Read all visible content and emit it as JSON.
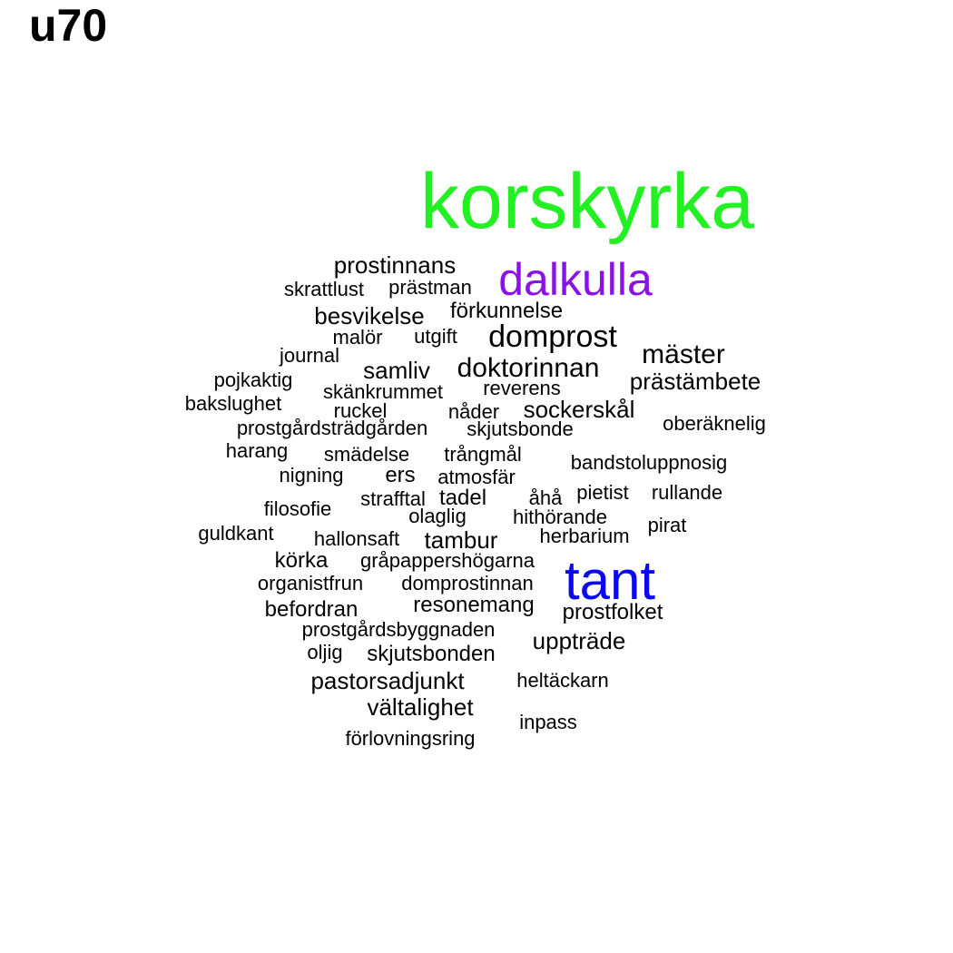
{
  "title": "u70",
  "colors": {
    "highlight_green": "#22f022",
    "highlight_purple": "#8a12e6",
    "highlight_blue": "#0a0af2",
    "default": "#000000"
  },
  "words": [
    {
      "text": "korskyrka",
      "color": "#22f022",
      "weight": 1.0
    },
    {
      "text": "dalkulla",
      "color": "#8a12e6",
      "weight": 0.62
    },
    {
      "text": "tant",
      "color": "#0a0af2",
      "weight": 0.68
    },
    {
      "text": "prostinnans",
      "color": "#000000",
      "weight": 0.32
    },
    {
      "text": "skrattlust",
      "color": "#000000",
      "weight": 0.28
    },
    {
      "text": "prästman",
      "color": "#000000",
      "weight": 0.28
    },
    {
      "text": "besvikelse",
      "color": "#000000",
      "weight": 0.32
    },
    {
      "text": "förkunnelse",
      "color": "#000000",
      "weight": 0.3
    },
    {
      "text": "malör",
      "color": "#000000",
      "weight": 0.28
    },
    {
      "text": "utgift",
      "color": "#000000",
      "weight": 0.28
    },
    {
      "text": "domprost",
      "color": "#000000",
      "weight": 0.42
    },
    {
      "text": "journal",
      "color": "#000000",
      "weight": 0.28
    },
    {
      "text": "mäster",
      "color": "#000000",
      "weight": 0.38
    },
    {
      "text": "samliv",
      "color": "#000000",
      "weight": 0.32
    },
    {
      "text": "doktorinnan",
      "color": "#000000",
      "weight": 0.38
    },
    {
      "text": "pojkaktig",
      "color": "#000000",
      "weight": 0.28
    },
    {
      "text": "prästämbete",
      "color": "#000000",
      "weight": 0.32
    },
    {
      "text": "skänkrummet",
      "color": "#000000",
      "weight": 0.28
    },
    {
      "text": "reverens",
      "color": "#000000",
      "weight": 0.28
    },
    {
      "text": "bakslughet",
      "color": "#000000",
      "weight": 0.28
    },
    {
      "text": "ruckel",
      "color": "#000000",
      "weight": 0.28
    },
    {
      "text": "nåder",
      "color": "#000000",
      "weight": 0.28
    },
    {
      "text": "sockerskål",
      "color": "#000000",
      "weight": 0.32
    },
    {
      "text": "oberäknelig",
      "color": "#000000",
      "weight": 0.28
    },
    {
      "text": "prostgårdsträdgården",
      "color": "#000000",
      "weight": 0.28
    },
    {
      "text": "skjutsbonde",
      "color": "#000000",
      "weight": 0.28
    },
    {
      "text": "harang",
      "color": "#000000",
      "weight": 0.28
    },
    {
      "text": "smädelse",
      "color": "#000000",
      "weight": 0.28
    },
    {
      "text": "trångmål",
      "color": "#000000",
      "weight": 0.28
    },
    {
      "text": "bandstoluppnosig",
      "color": "#000000",
      "weight": 0.28
    },
    {
      "text": "nigning",
      "color": "#000000",
      "weight": 0.28
    },
    {
      "text": "ers",
      "color": "#000000",
      "weight": 0.3
    },
    {
      "text": "atmosfär",
      "color": "#000000",
      "weight": 0.28
    },
    {
      "text": "strafftal",
      "color": "#000000",
      "weight": 0.28
    },
    {
      "text": "tadel",
      "color": "#000000",
      "weight": 0.3
    },
    {
      "text": "åhå",
      "color": "#000000",
      "weight": 0.28
    },
    {
      "text": "pietist",
      "color": "#000000",
      "weight": 0.28
    },
    {
      "text": "rullande",
      "color": "#000000",
      "weight": 0.28
    },
    {
      "text": "filosofie",
      "color": "#000000",
      "weight": 0.28
    },
    {
      "text": "olaglig",
      "color": "#000000",
      "weight": 0.28
    },
    {
      "text": "hithörande",
      "color": "#000000",
      "weight": 0.28
    },
    {
      "text": "pirat",
      "color": "#000000",
      "weight": 0.28
    },
    {
      "text": "guldkant",
      "color": "#000000",
      "weight": 0.28
    },
    {
      "text": "hallonsaft",
      "color": "#000000",
      "weight": 0.28
    },
    {
      "text": "tambur",
      "color": "#000000",
      "weight": 0.32
    },
    {
      "text": "herbarium",
      "color": "#000000",
      "weight": 0.28
    },
    {
      "text": "körka",
      "color": "#000000",
      "weight": 0.3
    },
    {
      "text": "gråpappershögarna",
      "color": "#000000",
      "weight": 0.28
    },
    {
      "text": "organistfrun",
      "color": "#000000",
      "weight": 0.28
    },
    {
      "text": "domprostinnan",
      "color": "#000000",
      "weight": 0.28
    },
    {
      "text": "befordran",
      "color": "#000000",
      "weight": 0.3
    },
    {
      "text": "resonemang",
      "color": "#000000",
      "weight": 0.3
    },
    {
      "text": "prostfolket",
      "color": "#000000",
      "weight": 0.3
    },
    {
      "text": "prostgårdsbyggnaden",
      "color": "#000000",
      "weight": 0.28
    },
    {
      "text": "uppträde",
      "color": "#000000",
      "weight": 0.32
    },
    {
      "text": "oljig",
      "color": "#000000",
      "weight": 0.28
    },
    {
      "text": "skjutsbonden",
      "color": "#000000",
      "weight": 0.3
    },
    {
      "text": "pastorsadjunkt",
      "color": "#000000",
      "weight": 0.32
    },
    {
      "text": "heltäckarn",
      "color": "#000000",
      "weight": 0.28
    },
    {
      "text": "vältalighet",
      "color": "#000000",
      "weight": 0.32
    },
    {
      "text": "inpass",
      "color": "#000000",
      "weight": 0.28
    },
    {
      "text": "förlovningsring",
      "color": "#000000",
      "weight": 0.28
    }
  ]
}
